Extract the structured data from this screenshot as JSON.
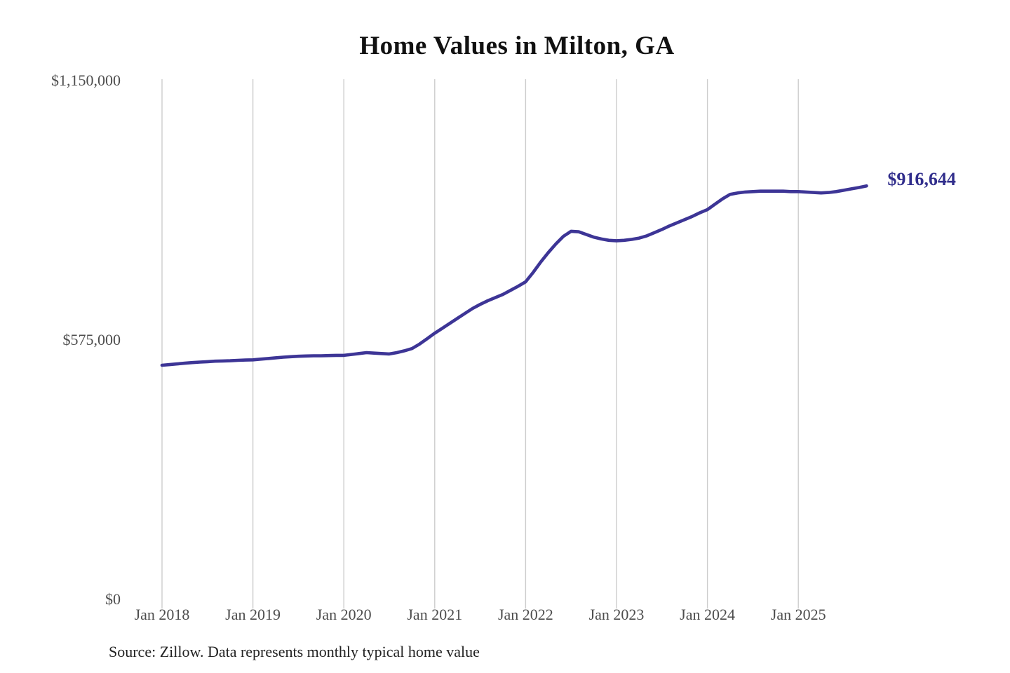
{
  "chart_data": {
    "type": "line",
    "title": "Home Values in Milton, GA",
    "source_note": "Source: Zillow. Data represents monthly typical home value",
    "xlabel": "",
    "ylabel": "",
    "ylim": [
      0,
      1150000
    ],
    "grid": "vertical-only",
    "legend": "none",
    "x_ticks": [
      "Jan 2018",
      "Jan 2019",
      "Jan 2020",
      "Jan 2021",
      "Jan 2022",
      "Jan 2023",
      "Jan 2024",
      "Jan 2025"
    ],
    "y_ticks": [
      {
        "label": "$0",
        "value": 0
      },
      {
        "label": "$575,000",
        "value": 575000
      },
      {
        "label": "$1,150,000",
        "value": 1150000
      }
    ],
    "end_label": "$916,644",
    "end_value": 916644,
    "series": [
      {
        "name": "Monthly typical home value",
        "start_month": "2018-01",
        "end_month": "2025-10",
        "values": [
          519000,
          520500,
          522000,
          523500,
          525000,
          526000,
          527000,
          528000,
          528500,
          529000,
          530000,
          530500,
          531000,
          532500,
          534000,
          535500,
          537000,
          538000,
          539000,
          539500,
          540000,
          540000,
          540500,
          541000,
          541000,
          543000,
          545000,
          547000,
          546000,
          545000,
          544000,
          547000,
          551000,
          556000,
          566000,
          578000,
          590000,
          601000,
          612000,
          623000,
          634000,
          645000,
          654000,
          662000,
          669000,
          676000,
          685000,
          694000,
          704000,
          725000,
          748000,
          769000,
          788000,
          805000,
          816000,
          815000,
          809000,
          803000,
          799000,
          796000,
          795000,
          796000,
          798000,
          801000,
          806000,
          813000,
          820000,
          828000,
          835000,
          842000,
          849000,
          857000,
          864000,
          876000,
          888000,
          898000,
          901000,
          903000,
          904000,
          905000,
          905000,
          905000,
          905000,
          904000,
          904000,
          903000,
          902000,
          901000,
          902000,
          904000,
          907000,
          910000,
          913000,
          916644
        ]
      }
    ],
    "colors": {
      "line": "#3d3596",
      "end_label": "#312e8c",
      "axis_text": "#4d4d4d",
      "gridline": "#cccccc",
      "title": "#111111",
      "source_text": "#222222"
    }
  }
}
